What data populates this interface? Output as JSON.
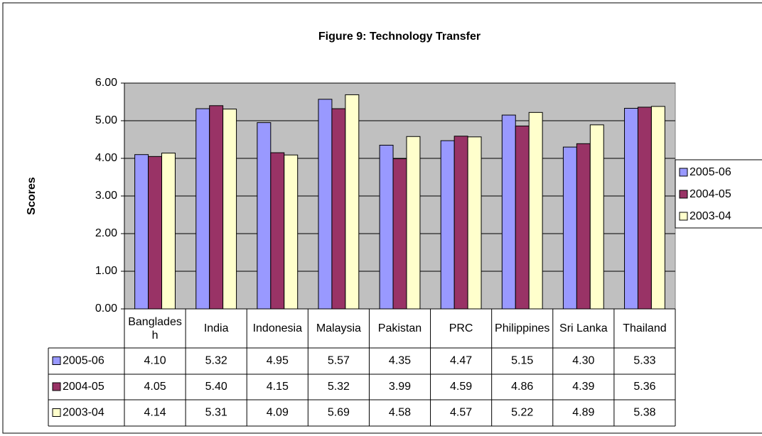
{
  "chart_data": {
    "type": "bar",
    "title": "Figure 9: Technology Transfer",
    "y_label": "Scores",
    "categories": [
      "Bangladesh",
      "India",
      "Indonesia",
      "Malaysia",
      "Pakistan",
      "PRC",
      "Philippines",
      "Sri Lanka",
      "Thailand"
    ],
    "series": [
      {
        "name": "2005-06",
        "color": "#9999ff",
        "values": [
          4.1,
          5.32,
          4.95,
          5.57,
          4.35,
          4.47,
          5.15,
          4.3,
          5.33
        ],
        "value_labels": [
          "4.10",
          "5.32",
          "4.95",
          "5.57",
          "4.35",
          "4.47",
          "5.15",
          "4.30",
          "5.33"
        ]
      },
      {
        "name": "2004-05",
        "color": "#993366",
        "values": [
          4.05,
          5.4,
          4.15,
          5.32,
          3.99,
          4.59,
          4.86,
          4.39,
          5.36
        ],
        "value_labels": [
          "4.05",
          "5.40",
          "4.15",
          "5.32",
          "3.99",
          "4.59",
          "4.86",
          "4.39",
          "5.36"
        ]
      },
      {
        "name": "2003-04",
        "color": "#ffffcc",
        "values": [
          4.14,
          5.31,
          4.09,
          5.69,
          4.58,
          4.57,
          5.22,
          4.89,
          5.38
        ],
        "value_labels": [
          "4.14",
          "5.31",
          "4.09",
          "5.69",
          "4.58",
          "4.57",
          "5.22",
          "4.89",
          "5.38"
        ]
      }
    ],
    "ylim": [
      0,
      6
    ],
    "yticks": [
      {
        "value": 0,
        "label": "0.00"
      },
      {
        "value": 1,
        "label": "1.00"
      },
      {
        "value": 2,
        "label": "2.00"
      },
      {
        "value": 3,
        "label": "3.00"
      },
      {
        "value": 4,
        "label": "4.00"
      },
      {
        "value": 5,
        "label": "5.00"
      },
      {
        "value": 6,
        "label": "6.00"
      }
    ],
    "grid": true,
    "legend": "right",
    "plot_background": "#c0c0c0"
  }
}
